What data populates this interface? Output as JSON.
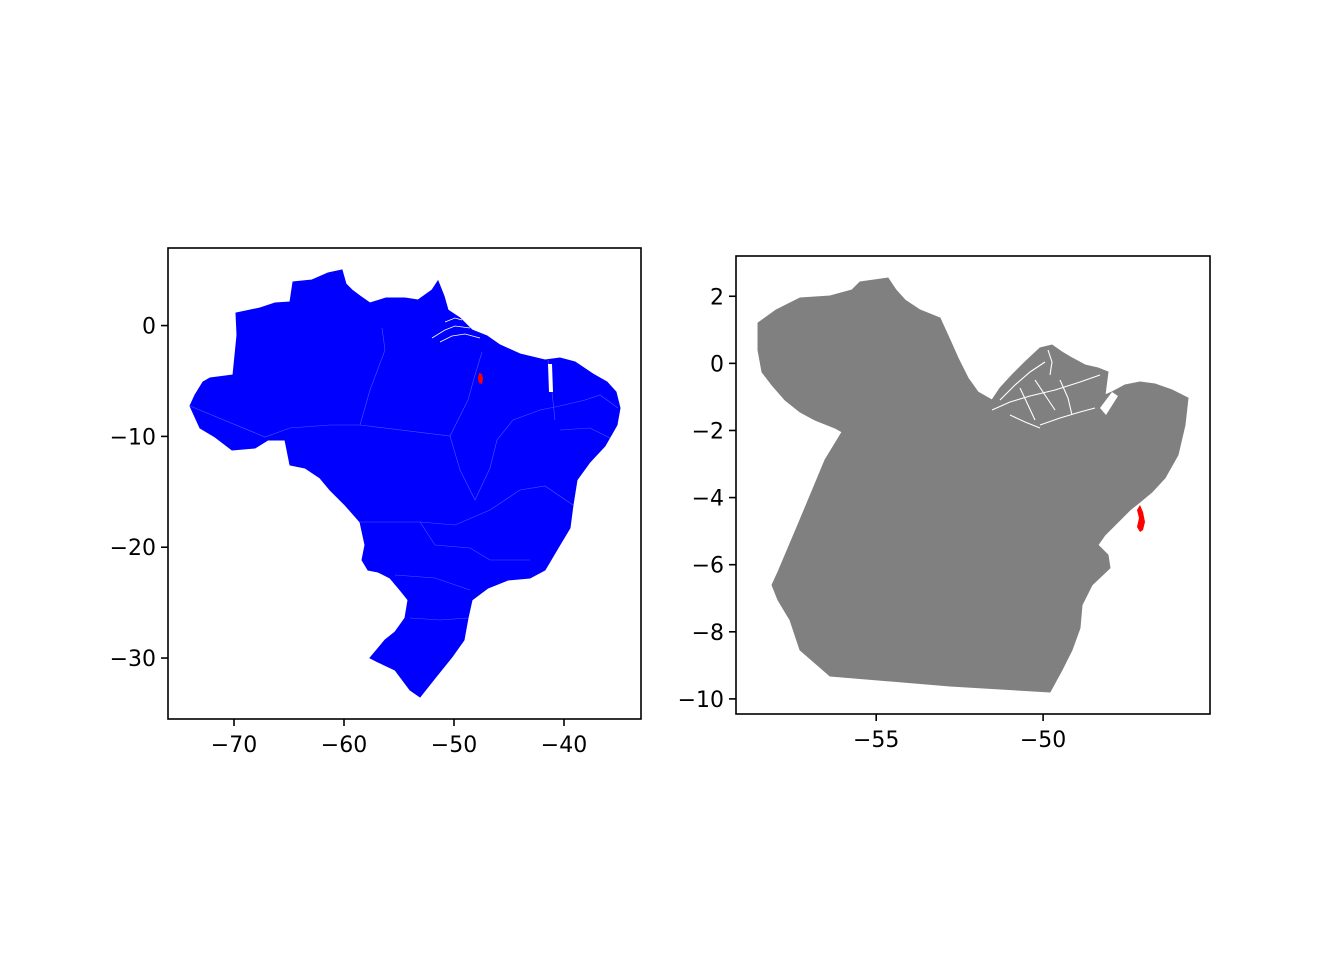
{
  "figure": {
    "panels": [
      {
        "id": "brazil-map",
        "fill_color": "#0000ff",
        "highlight_color": "#ff0000",
        "x_axis": {
          "range": [
            -76,
            -33
          ],
          "ticks": [
            -70,
            -60,
            -50,
            -40
          ],
          "tick_labels": [
            "−70",
            "−60",
            "−50",
            "−40"
          ]
        },
        "y_axis": {
          "range": [
            -35.5,
            7
          ],
          "ticks": [
            0,
            -10,
            -20,
            -30
          ],
          "tick_labels": [
            "0",
            "−10",
            "−20",
            "−30"
          ]
        }
      },
      {
        "id": "para-map",
        "fill_color": "#808080",
        "highlight_color": "#ff0000",
        "x_axis": {
          "range": [
            -59.2,
            -45.0
          ],
          "ticks": [
            -55,
            -50
          ],
          "tick_labels": [
            "−55",
            "−50"
          ]
        },
        "y_axis": {
          "range": [
            -10.45,
            3.2
          ],
          "ticks": [
            2,
            0,
            -2,
            -4,
            -6,
            -8,
            -10
          ],
          "tick_labels": [
            "2",
            "0",
            "−2",
            "−4",
            "−6",
            "−8",
            "−10"
          ]
        }
      }
    ]
  }
}
